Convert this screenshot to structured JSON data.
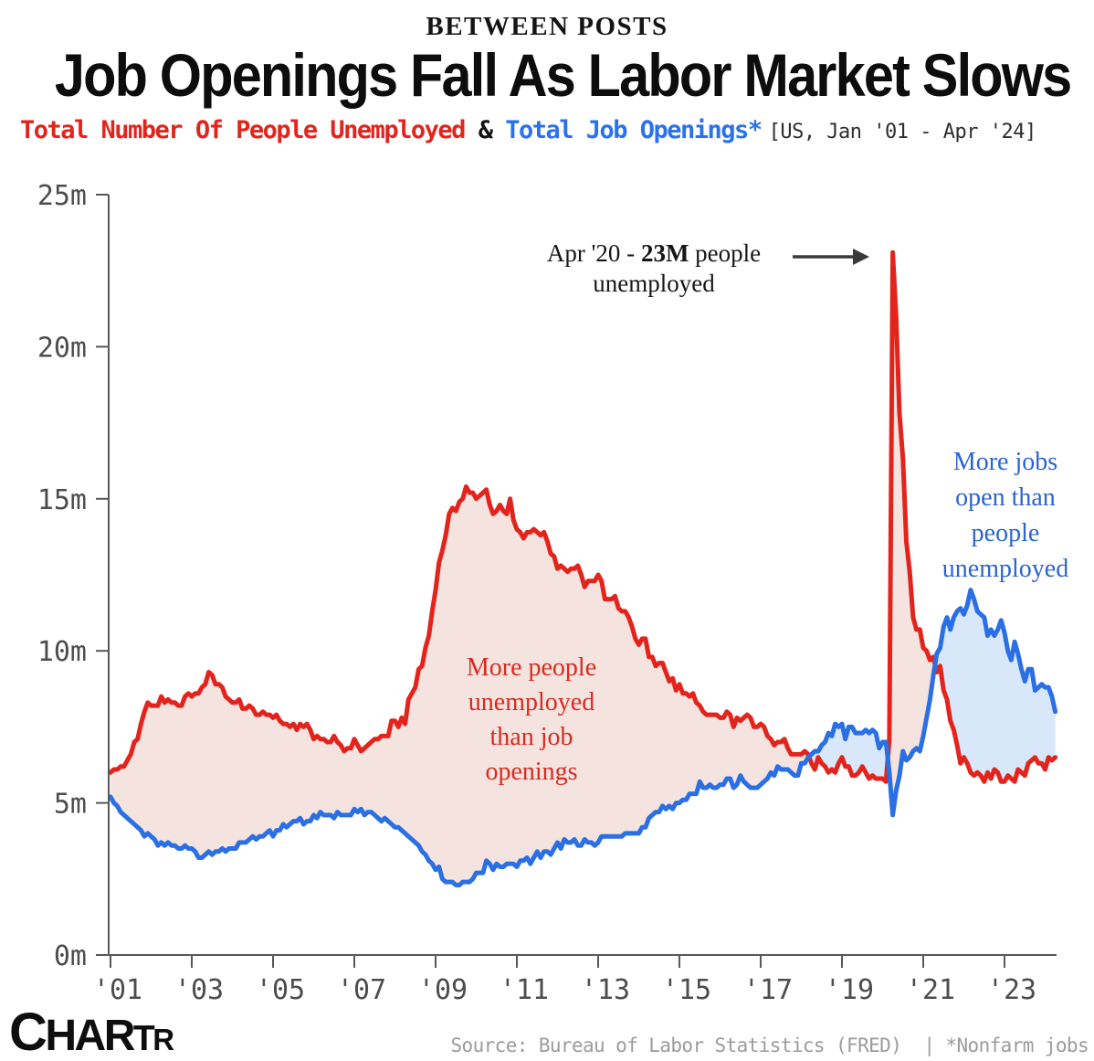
{
  "header": {
    "kicker": "BETWEEN POSTS",
    "title": "Job Openings Fall As Labor Market Slows",
    "legend_unemployed": "Total Number Of People Unemployed",
    "legend_amp": " & ",
    "legend_openings": "Total Job Openings*",
    "legend_range": "[US, Jan '01 - Apr '24]"
  },
  "annotations": {
    "spike_prefix": "Apr '20 - ",
    "spike_bold": "23M",
    "spike_suffix": " people",
    "spike_line2": "unemployed",
    "red_area_label": "More people\nunemployed\nthan job\nopenings",
    "blue_area_label": "More jobs\nopen than\npeople\nunemployed"
  },
  "footer": {
    "logo_parts": [
      "C",
      "HAR",
      "T",
      "R"
    ],
    "source": "Source: Bureau of Labor Statistics (FRED)  | *Nonfarm jobs"
  },
  "colors": {
    "red": "#e3241c",
    "blue": "#2a6fe4",
    "fill_red_above": "#f5e3df",
    "fill_blue_above": "#d8e7f9",
    "axis": "#58585a",
    "tick_label": "#4d4d4d",
    "arrow": "#3a3a3a"
  },
  "chart_data": {
    "type": "line",
    "title": "Total Number Of People Unemployed & Total Job Openings, US, Jan '01 - Apr '24",
    "x_start_year": 2001,
    "x_step_months": 1,
    "x_end_label": "Apr '24",
    "ylim": [
      0,
      25
    ],
    "y_ticks": [
      0,
      5,
      10,
      15,
      20,
      25
    ],
    "y_tick_labels": [
      "0m",
      "5m",
      "10m",
      "15m",
      "20m",
      "25m"
    ],
    "x_tick_years": [
      2001,
      2003,
      2005,
      2007,
      2009,
      2011,
      2013,
      2015,
      2017,
      2019,
      2021,
      2023
    ],
    "x_tick_labels": [
      "'01",
      "'03",
      "'05",
      "'07",
      "'09",
      "'11",
      "'13",
      "'15",
      "'17",
      "'19",
      "'21",
      "'23"
    ],
    "annotation_peak": {
      "month": "Apr '20",
      "value_millions": 23.1
    },
    "series": [
      {
        "name": "Total Number Of People Unemployed",
        "color": "#e3241c",
        "values": [
          6.0,
          6.1,
          6.1,
          6.2,
          6.2,
          6.4,
          6.6,
          7.0,
          7.1,
          7.6,
          8.0,
          8.3,
          8.2,
          8.2,
          8.2,
          8.5,
          8.3,
          8.4,
          8.3,
          8.3,
          8.2,
          8.2,
          8.5,
          8.6,
          8.5,
          8.6,
          8.6,
          8.8,
          8.9,
          9.3,
          9.2,
          8.9,
          8.9,
          8.8,
          8.5,
          8.4,
          8.3,
          8.3,
          8.4,
          8.1,
          8.1,
          8.2,
          8.1,
          7.9,
          7.9,
          8.0,
          7.9,
          7.9,
          7.8,
          7.9,
          7.7,
          7.6,
          7.6,
          7.5,
          7.6,
          7.4,
          7.6,
          7.5,
          7.6,
          7.4,
          7.1,
          7.2,
          7.1,
          7.1,
          7.0,
          7.0,
          7.2,
          7.0,
          6.9,
          6.7,
          6.8,
          6.8,
          7.1,
          6.9,
          6.7,
          6.8,
          6.9,
          7.0,
          7.1,
          7.1,
          7.2,
          7.2,
          7.2,
          7.7,
          7.7,
          7.5,
          7.8,
          7.6,
          8.4,
          8.6,
          8.8,
          9.4,
          9.5,
          10.1,
          10.5,
          11.3,
          12.0,
          12.9,
          13.3,
          13.8,
          14.5,
          14.7,
          14.6,
          14.9,
          15.0,
          15.4,
          15.2,
          15.2,
          15.0,
          15.1,
          15.2,
          15.3,
          14.8,
          14.5,
          14.6,
          14.8,
          14.6,
          14.5,
          15.0,
          14.3,
          14.0,
          13.9,
          13.7,
          13.9,
          13.9,
          14.0,
          13.9,
          13.8,
          13.9,
          13.6,
          13.2,
          13.1,
          12.7,
          12.8,
          12.7,
          12.6,
          12.7,
          12.7,
          12.8,
          12.5,
          12.1,
          12.3,
          12.3,
          12.3,
          12.5,
          12.3,
          11.7,
          11.7,
          11.7,
          11.8,
          11.4,
          11.3,
          11.3,
          11.1,
          10.8,
          10.4,
          10.2,
          10.4,
          10.4,
          9.8,
          9.8,
          9.5,
          9.6,
          9.6,
          9.3,
          9.0,
          9.1,
          8.7,
          8.9,
          8.6,
          8.6,
          8.5,
          8.6,
          8.3,
          8.2,
          8.0,
          7.9,
          7.9,
          7.9,
          7.9,
          7.8,
          7.8,
          8.0,
          7.9,
          7.5,
          7.8,
          7.7,
          7.8,
          7.9,
          7.8,
          7.5,
          7.5,
          7.6,
          7.5,
          7.2,
          7.1,
          6.9,
          7.0,
          7.0,
          7.1,
          6.8,
          6.6,
          6.6,
          6.6,
          6.6,
          6.7,
          6.6,
          6.3,
          6.1,
          6.5,
          6.3,
          6.2,
          6.0,
          6.1,
          6.0,
          6.3,
          6.5,
          6.2,
          6.2,
          5.9,
          5.9,
          6.0,
          6.2,
          6.0,
          5.8,
          5.9,
          5.8,
          5.8,
          5.8,
          5.7,
          7.1,
          23.1,
          21.0,
          17.8,
          16.3,
          13.6,
          12.6,
          11.1,
          10.7,
          10.7,
          10.1,
          10.0,
          9.7,
          9.8,
          9.3,
          9.5,
          8.7,
          8.4,
          7.7,
          7.4,
          6.9,
          6.3,
          6.5,
          6.3,
          6.0,
          5.9,
          6.0,
          5.9,
          5.7,
          6.0,
          5.8,
          6.1,
          6.0,
          5.7,
          5.7,
          5.9,
          5.8,
          5.7,
          6.1,
          6.0,
          5.9,
          6.3,
          6.4,
          6.5,
          6.3,
          6.3,
          6.1,
          6.5,
          6.4,
          6.5
        ]
      },
      {
        "name": "Total Job Openings",
        "color": "#2a6fe4",
        "values": [
          5.2,
          5.0,
          4.9,
          4.7,
          4.6,
          4.5,
          4.4,
          4.3,
          4.2,
          4.1,
          3.9,
          4.0,
          3.9,
          3.8,
          3.6,
          3.7,
          3.6,
          3.7,
          3.6,
          3.6,
          3.5,
          3.5,
          3.6,
          3.5,
          3.5,
          3.4,
          3.2,
          3.2,
          3.3,
          3.4,
          3.3,
          3.4,
          3.4,
          3.5,
          3.4,
          3.5,
          3.5,
          3.5,
          3.7,
          3.7,
          3.7,
          3.8,
          3.9,
          3.8,
          3.9,
          3.9,
          4.0,
          4.1,
          3.9,
          4.1,
          4.1,
          4.3,
          4.2,
          4.3,
          4.4,
          4.4,
          4.5,
          4.3,
          4.4,
          4.4,
          4.6,
          4.5,
          4.7,
          4.6,
          4.6,
          4.6,
          4.5,
          4.7,
          4.6,
          4.6,
          4.6,
          4.6,
          4.8,
          4.7,
          4.8,
          4.6,
          4.7,
          4.7,
          4.6,
          4.5,
          4.4,
          4.5,
          4.4,
          4.3,
          4.2,
          4.2,
          4.1,
          4.0,
          3.9,
          3.8,
          3.7,
          3.6,
          3.4,
          3.3,
          3.1,
          3.0,
          2.8,
          2.9,
          2.5,
          2.4,
          2.4,
          2.4,
          2.3,
          2.3,
          2.4,
          2.4,
          2.4,
          2.5,
          2.7,
          2.7,
          2.7,
          3.1,
          3.0,
          2.8,
          3.0,
          2.9,
          2.9,
          3.0,
          3.0,
          3.0,
          2.9,
          3.1,
          3.1,
          3.2,
          3.0,
          3.2,
          3.4,
          3.2,
          3.4,
          3.4,
          3.3,
          3.5,
          3.7,
          3.5,
          3.8,
          3.7,
          3.7,
          3.8,
          3.6,
          3.6,
          3.8,
          3.7,
          3.7,
          3.6,
          3.7,
          3.9,
          3.9,
          3.9,
          3.9,
          3.9,
          3.9,
          3.9,
          4.0,
          4.0,
          4.0,
          4.0,
          4.0,
          4.2,
          4.2,
          4.5,
          4.6,
          4.7,
          4.7,
          4.9,
          4.8,
          4.9,
          4.8,
          5.0,
          5.0,
          5.1,
          5.1,
          5.3,
          5.3,
          5.3,
          5.7,
          5.5,
          5.5,
          5.6,
          5.5,
          5.5,
          5.6,
          5.6,
          5.8,
          5.8,
          5.5,
          5.6,
          5.9,
          5.7,
          5.6,
          5.5,
          5.5,
          5.5,
          5.6,
          5.7,
          5.8,
          6.0,
          5.9,
          6.2,
          6.1,
          6.1,
          6.1,
          6.0,
          5.9,
          5.9,
          6.3,
          6.3,
          6.5,
          6.6,
          6.7,
          6.7,
          6.9,
          7.0,
          7.3,
          7.2,
          7.6,
          7.5,
          7.6,
          7.1,
          7.5,
          7.5,
          7.3,
          7.3,
          7.3,
          7.4,
          7.3,
          7.4,
          7.3,
          6.8,
          7.0,
          7.0,
          6.0,
          4.6,
          5.4,
          5.9,
          6.7,
          6.4,
          6.5,
          6.7,
          6.8,
          6.7,
          7.2,
          7.8,
          8.4,
          9.2,
          9.9,
          10.1,
          10.8,
          11.1,
          10.7,
          11.1,
          11.3,
          11.4,
          11.2,
          11.5,
          12.0,
          11.7,
          11.3,
          11.2,
          11.1,
          10.5,
          10.7,
          10.5,
          10.7,
          11.0,
          10.6,
          10.0,
          9.7,
          10.3,
          9.9,
          9.4,
          9.0,
          9.4,
          9.4,
          8.7,
          8.8,
          8.9,
          8.8,
          8.8,
          8.5,
          8.0
        ]
      }
    ]
  }
}
